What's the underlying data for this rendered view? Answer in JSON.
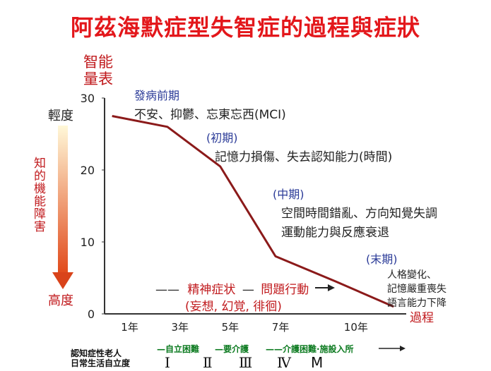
{
  "title": "阿茲海默症型失智症的過程與症狀",
  "y_axis_title": [
    "智能",
    "量表"
  ],
  "left_scale": {
    "top_label": "輕度",
    "bottom_label": "高度",
    "middle_label": "知的機能障害",
    "colors": {
      "top": "#fff8d8",
      "bottom": "#e14a1b",
      "arrow": "#d9431a"
    }
  },
  "stages": [
    {
      "name": "發病前期",
      "symptoms": [
        "不安、抑鬱、忘東忘西(MCI)"
      ]
    },
    {
      "name": "(初期)",
      "symptoms": [
        "記憶力損傷、失去認知能力(時間)"
      ]
    },
    {
      "name": "(中期)",
      "symptoms": [
        "空間時間錯亂、方向知覺失調",
        "運動能力與反應衰退"
      ]
    },
    {
      "name": "(末期)",
      "symptoms": [
        "人格變化、",
        "記憶嚴重喪失",
        "語言能力下降"
      ]
    }
  ],
  "psych": {
    "line1_prefix": "——",
    "line1_a": "精神症状",
    "line1_sep": "—",
    "line1_b": "問題行動",
    "line2": "(妄想, 幻覚, 徘徊)"
  },
  "x_axis_end_label": "過程",
  "bottom_row": {
    "label_line1": "認知症性老人",
    "label_line2": "日常生活自立度",
    "segments": [
      "—自立困難",
      "—要介護",
      "——介護困難·施設入所"
    ],
    "levels": [
      "Ⅰ",
      "Ⅱ",
      "Ⅲ",
      "Ⅳ",
      "M"
    ]
  },
  "chart_data": {
    "type": "line",
    "title": "阿茲海默症型失智症的過程與症狀",
    "ylabel": "智能量表",
    "xlabel": "過程",
    "ylim": [
      0,
      30
    ],
    "yticks": [
      0,
      10,
      20,
      30
    ],
    "xticks": [
      {
        "label": "1年",
        "value": 1
      },
      {
        "label": "3年",
        "value": 3
      },
      {
        "label": "5年",
        "value": 5
      },
      {
        "label": "7年",
        "value": 7
      },
      {
        "label": "10年",
        "value": 10
      }
    ],
    "series": [
      {
        "color": "#8b1a1a",
        "x": [
          0.3,
          2.5,
          4.6,
          6.8,
          9.2,
          11.5
        ],
        "values": [
          27.5,
          26,
          20.5,
          8,
          4.5,
          1
        ]
      }
    ]
  }
}
